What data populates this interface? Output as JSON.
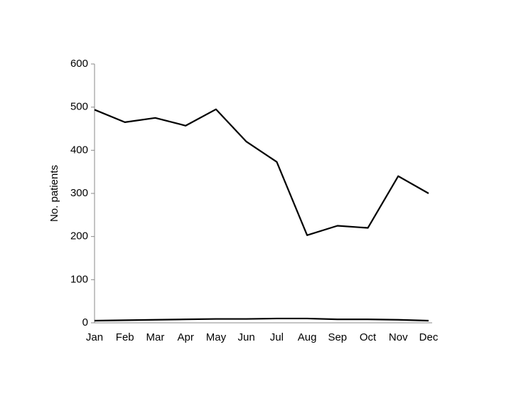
{
  "chart_data": {
    "type": "line",
    "y_label": "No. patients",
    "categories": [
      "Jan",
      "Feb",
      "Mar",
      "Apr",
      "May",
      "Jun",
      "Jul",
      "Aug",
      "Sep",
      "Oct",
      "Nov",
      "Dec"
    ],
    "series": [
      {
        "color": "#000000",
        "values": [
          494,
          465,
          475,
          457,
          495,
          420,
          373,
          203,
          225,
          220,
          340,
          300
        ]
      },
      {
        "color": "#000000",
        "values": [
          5,
          6,
          7,
          8,
          9,
          9,
          10,
          10,
          8,
          8,
          7,
          5
        ]
      }
    ],
    "ylim": [
      0,
      600
    ],
    "yticks": [
      0,
      100,
      200,
      300,
      400,
      500,
      600
    ],
    "grid": false
  }
}
